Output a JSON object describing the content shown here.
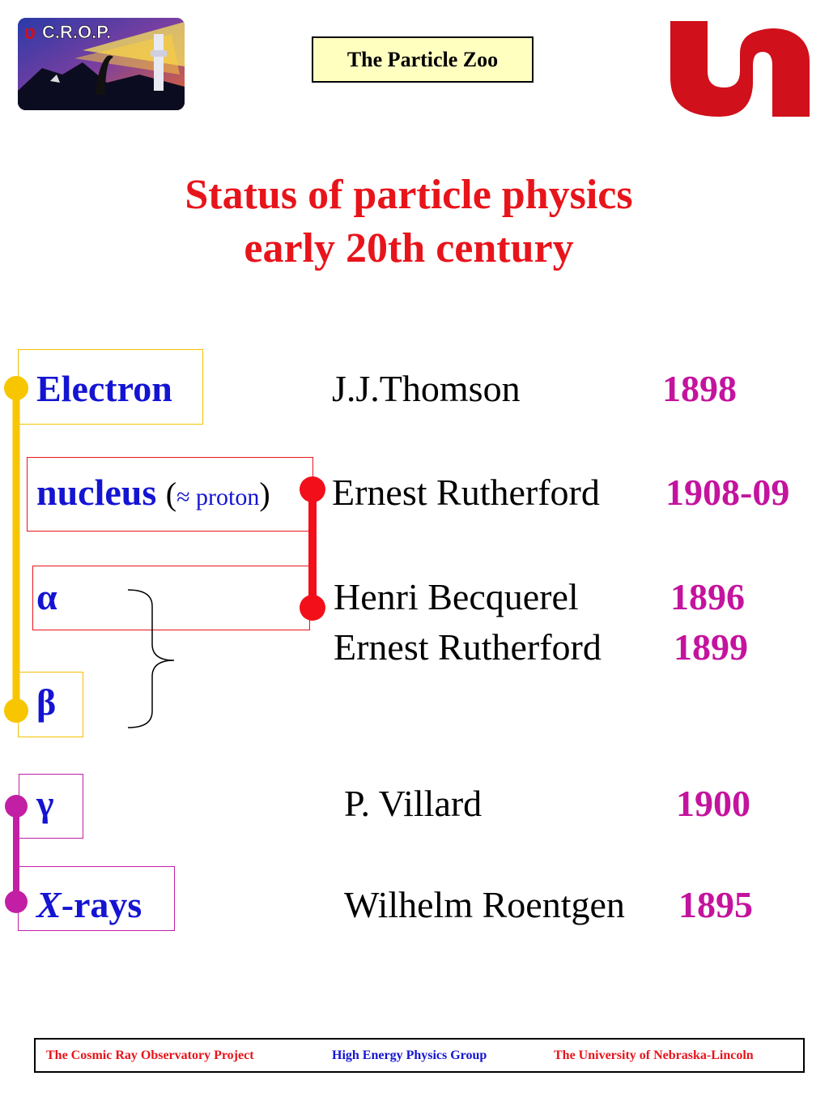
{
  "header": {
    "logo_text": "C.R.O.P.",
    "title": "The Particle Zoo"
  },
  "slide": {
    "title_line1": "Status of particle physics",
    "title_line2": "early 20th century"
  },
  "rows": {
    "electron": {
      "particle": "Electron",
      "person": "J.J.Thomson",
      "year": "1898"
    },
    "nucleus": {
      "particle": "nucleus",
      "open_paren": "(",
      "approx": "≈ proton",
      "close_paren": ")",
      "person": "Ernest Rutherford",
      "year": "1908-09"
    },
    "alpha": {
      "particle": "α",
      "person": "Henri Becquerel",
      "year": "1896"
    },
    "beta_discovery": {
      "person": "Ernest Rutherford",
      "year": "1899"
    },
    "beta": {
      "particle": "β"
    },
    "gamma": {
      "particle": "γ",
      "person": "P. Villard",
      "year": "1900"
    },
    "xrays": {
      "particle_x": "X",
      "particle_rest": "-rays",
      "person": "Wilhelm Roentgen",
      "year": "1895"
    }
  },
  "footer": {
    "left": "The Cosmic Ray Observatory Project",
    "center": "High Energy Physics Group",
    "right": "The University of Nebraska-Lincoln"
  },
  "colors": {
    "title": "#e8141b",
    "particle": "#1414d2",
    "year": "#c4139e",
    "yellow_connector": "#f7c600",
    "red_connector": "#f20f1a",
    "magenta_connector": "#c21fa5",
    "header_box_bg": "#ffffc0",
    "university_logo": "#d0101a"
  }
}
